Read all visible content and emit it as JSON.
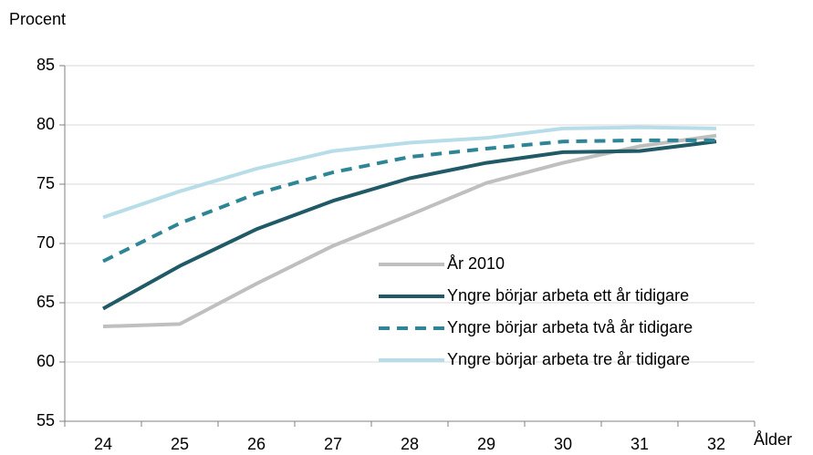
{
  "chart_data": {
    "type": "line",
    "y_label": "Procent",
    "x_label": "Ålder",
    "categories": [
      "24",
      "25",
      "26",
      "27",
      "28",
      "29",
      "30",
      "31",
      "32"
    ],
    "series": [
      {
        "name": "År 2010",
        "color": "#bfbfbf",
        "dashed": false,
        "values": [
          63.0,
          63.2,
          66.6,
          69.8,
          72.4,
          75.1,
          76.8,
          78.2,
          79.1
        ]
      },
      {
        "name": "Yngre börjar arbeta ett år tidigare",
        "color": "#1f5a66",
        "dashed": false,
        "values": [
          64.5,
          68.1,
          71.2,
          73.6,
          75.5,
          76.8,
          77.7,
          77.8,
          78.6
        ]
      },
      {
        "name": "Yngre börjar arbeta två år tidigare",
        "color": "#2e8595",
        "dashed": true,
        "values": [
          68.5,
          71.7,
          74.2,
          76.0,
          77.3,
          78.0,
          78.6,
          78.7,
          78.7
        ]
      },
      {
        "name": "Yngre börjar arbeta tre år tidigare",
        "color": "#b7dde8",
        "dashed": false,
        "values": [
          72.2,
          74.4,
          76.3,
          77.8,
          78.5,
          78.9,
          79.7,
          79.8,
          79.7
        ]
      }
    ],
    "ylim": [
      55,
      85
    ],
    "yticks": [
      55,
      60,
      65,
      70,
      75,
      80,
      85
    ],
    "grid": true
  }
}
